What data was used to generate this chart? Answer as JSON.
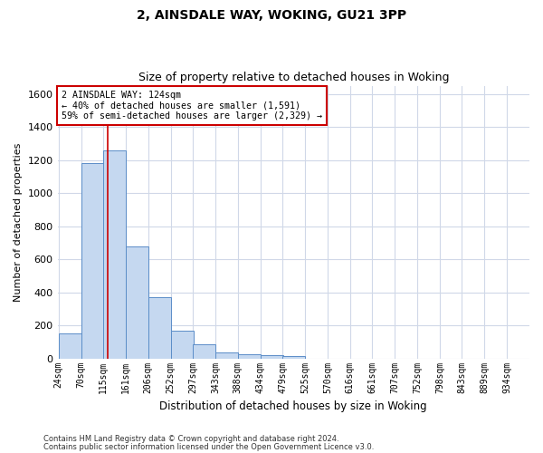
{
  "title1": "2, AINSDALE WAY, WOKING, GU21 3PP",
  "title2": "Size of property relative to detached houses in Woking",
  "xlabel": "Distribution of detached houses by size in Woking",
  "ylabel": "Number of detached properties",
  "footnote1": "Contains HM Land Registry data © Crown copyright and database right 2024.",
  "footnote2": "Contains public sector information licensed under the Open Government Licence v3.0.",
  "bin_labels": [
    "24sqm",
    "70sqm",
    "115sqm",
    "161sqm",
    "206sqm",
    "252sqm",
    "297sqm",
    "343sqm",
    "388sqm",
    "434sqm",
    "479sqm",
    "525sqm",
    "570sqm",
    "616sqm",
    "661sqm",
    "707sqm",
    "752sqm",
    "798sqm",
    "843sqm",
    "889sqm",
    "934sqm"
  ],
  "bar_heights": [
    150,
    1180,
    1260,
    680,
    370,
    170,
    85,
    35,
    25,
    18,
    15,
    0,
    0,
    0,
    0,
    0,
    0,
    0,
    0,
    0,
    0
  ],
  "bin_edges": [
    24,
    70,
    115,
    161,
    206,
    252,
    297,
    343,
    388,
    434,
    479,
    525,
    570,
    616,
    661,
    707,
    752,
    798,
    843,
    889,
    934
  ],
  "property_size": 124,
  "property_label": "2 AINSDALE WAY: 124sqm",
  "annotation_line1": "← 40% of detached houses are smaller (1,591)",
  "annotation_line2": "59% of semi-detached houses are larger (2,329) →",
  "bar_color": "#c5d8f0",
  "bar_edge_color": "#5b8dc8",
  "vline_color": "#cc0000",
  "annotation_box_color": "#cc0000",
  "grid_color": "#d0d8e8",
  "ylim": [
    0,
    1650
  ],
  "yticks": [
    0,
    200,
    400,
    600,
    800,
    1000,
    1200,
    1400,
    1600
  ]
}
